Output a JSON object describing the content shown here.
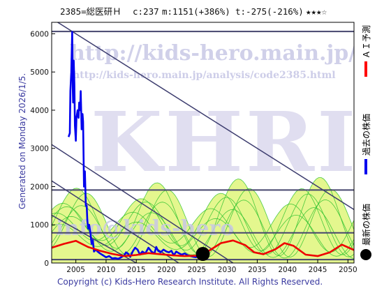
{
  "header": {
    "code_name": "2385=総医研Ｈ",
    "current": "c:237",
    "mid": "m:1151(+386%)",
    "target": "t:-275(-216%)",
    "stars": "★★★☆"
  },
  "side_label": "Generated on Monday 2026/1/5.",
  "footer": "Copyright (c) Kids-Hero Research Institute. All Rights Reserved.",
  "watermark": {
    "site": "http://kids-hero.main.jp/",
    "page": "http://kids-hero.main.jp/analysis/code2385.html",
    "logo": "KHRI",
    "mail": "info@kids-hero"
  },
  "legend": [
    {
      "label": "ＡＩ予測",
      "color": "#ff0000"
    },
    {
      "label": "過去の株価",
      "color": "#0000ff"
    },
    {
      "label": "最新の株価",
      "color": "#000000"
    }
  ],
  "colors": {
    "price": "#0000ee",
    "forecast": "#ee0000",
    "trend": "#3c3c6e",
    "hline": "#46466e",
    "band_fill": "#e4f78e",
    "band_line": "#2ec22e"
  },
  "chart_data": {
    "type": "line",
    "xlim": [
      2001,
      2051
    ],
    "ylim": [
      0,
      6300
    ],
    "x_ticks": [
      "2005",
      "2010",
      "2015",
      "2020",
      "2025",
      "2030",
      "2035",
      "2040",
      "2045",
      "2050"
    ],
    "y_ticks": [
      "0",
      "1000",
      "2000",
      "3000",
      "4000",
      "5000",
      "6000"
    ],
    "grid": false,
    "legend_position": "right-outside",
    "horizontal_levels": [
      6060,
      1910,
      790,
      90
    ],
    "trend_lines": [
      {
        "x": [
          2001,
          2051
        ],
        "y": [
          6400,
          1400
        ]
      },
      {
        "x": [
          2001,
          2031
        ],
        "y": [
          3100,
          0
        ]
      },
      {
        "x": [
          2001,
          2022
        ],
        "y": [
          2150,
          0
        ]
      },
      {
        "x": [
          2001,
          2015
        ],
        "y": [
          1250,
          0
        ]
      }
    ],
    "series": [
      {
        "name": "過去の株価",
        "x": [
          2003.8,
          2004.0,
          2004.1,
          2004.25,
          2004.4,
          2004.5,
          2004.55,
          2004.65,
          2004.75,
          2004.85,
          2005.0,
          2005.1,
          2005.3,
          2005.45,
          2005.55,
          2005.7,
          2005.8,
          2005.95,
          2006.1,
          2006.2,
          2006.35,
          2006.5,
          2006.65,
          2006.8,
          2006.9,
          2007.05,
          2007.2,
          2007.4,
          2007.6,
          2007.8,
          2008.0,
          2008.3,
          2008.6,
          2009.0,
          2009.5,
          2010.0,
          2010.5,
          2011.0,
          2011.5,
          2012.0,
          2012.5,
          2013.0,
          2013.3,
          2013.6,
          2014.0,
          2014.4,
          2014.8,
          2015.2,
          2015.6,
          2016.0,
          2016.5,
          2017.0,
          2017.5,
          2018.0,
          2018.3,
          2018.6,
          2019.0,
          2019.5,
          2020.0,
          2020.4,
          2020.8,
          2021.2,
          2021.6,
          2022.0,
          2022.5,
          2023.0,
          2023.5,
          2024.0,
          2024.5,
          2025.0
        ],
        "y": [
          3300,
          3400,
          4500,
          5000,
          6050,
          4500,
          4200,
          5300,
          4700,
          3600,
          3200,
          3800,
          4000,
          3800,
          4200,
          4000,
          4500,
          3500,
          3900,
          3700,
          2000,
          2400,
          1500,
          1500,
          1100,
          900,
          1000,
          800,
          500,
          600,
          300,
          350,
          300,
          250,
          200,
          150,
          180,
          120,
          130,
          110,
          150,
          200,
          280,
          250,
          160,
          300,
          400,
          350,
          220,
          300,
          250,
          400,
          300,
          250,
          420,
          320,
          280,
          350,
          300,
          280,
          320,
          200,
          300,
          260,
          220,
          250,
          200,
          180,
          160,
          150
        ]
      },
      {
        "name": "ＡＩ予測",
        "x": [
          2001,
          2003,
          2005,
          2007,
          2009,
          2011,
          2013,
          2015,
          2017,
          2019,
          2021,
          2023,
          2025,
          2026,
          2027,
          2029,
          2031,
          2033,
          2034.5,
          2036,
          2038,
          2039.5,
          2041,
          2043,
          2045,
          2047,
          2049,
          2051
        ],
        "y": [
          400,
          500,
          580,
          420,
          320,
          240,
          180,
          210,
          260,
          230,
          200,
          180,
          190,
          200,
          320,
          520,
          590,
          470,
          280,
          230,
          360,
          520,
          450,
          220,
          180,
          280,
          480,
          340
        ]
      }
    ],
    "latest": {
      "x": 2026,
      "y": 237
    }
  }
}
